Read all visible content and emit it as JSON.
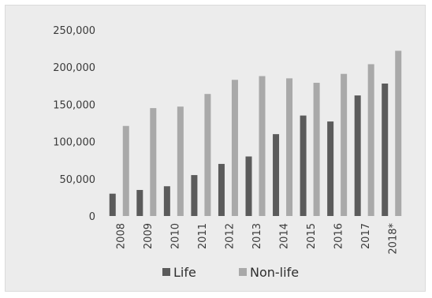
{
  "chart_data": {
    "type": "bar",
    "categories": [
      "2008",
      "2009",
      "2010",
      "2011",
      "2012",
      "2013",
      "2014",
      "2015",
      "2016",
      "2017",
      "2018*"
    ],
    "series": [
      {
        "name": "Life",
        "color": "#5b5b5b",
        "values": [
          30000,
          35000,
          40000,
          55000,
          70000,
          80000,
          110000,
          135000,
          127000,
          162000,
          178000
        ]
      },
      {
        "name": "Non-life",
        "color": "#a9a9a9",
        "values": [
          121000,
          145000,
          147000,
          164000,
          183000,
          188000,
          185000,
          179000,
          191000,
          204000,
          222000
        ]
      }
    ],
    "y_ticks": [
      {
        "value": 0,
        "label": "0"
      },
      {
        "value": 50000,
        "label": "50,000"
      },
      {
        "value": 100000,
        "label": "100,000"
      },
      {
        "value": 150000,
        "label": "150,000"
      },
      {
        "value": 200000,
        "label": "200,000"
      },
      {
        "value": 250000,
        "label": "250,000"
      }
    ],
    "ylim": [
      0,
      250000
    ],
    "grid": false,
    "legend_position": "bottom-center",
    "title": "",
    "xlabel": "",
    "ylabel": ""
  }
}
